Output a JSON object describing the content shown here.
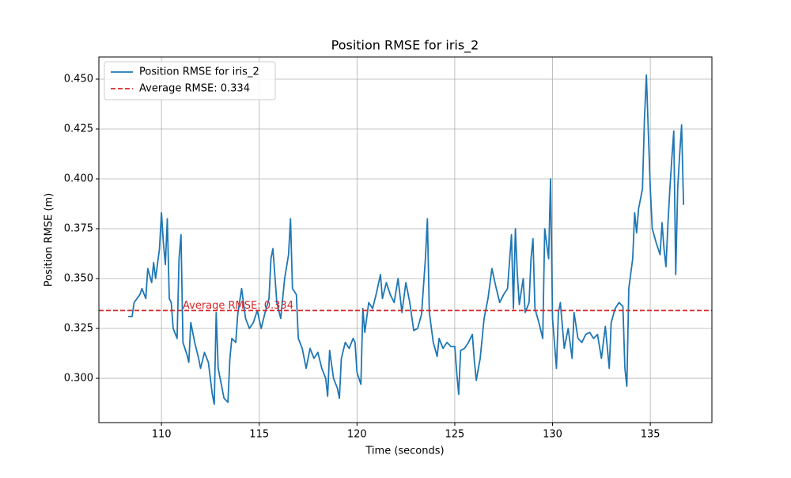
{
  "chart_data": {
    "type": "line",
    "title": "Position RMSE for iris_2",
    "xlabel": "Time (seconds)",
    "ylabel": "Position RMSE (m)",
    "x": [
      108.3,
      108.5,
      108.6,
      108.9,
      109.0,
      109.2,
      109.3,
      109.5,
      109.6,
      109.7,
      109.9,
      110.0,
      110.1,
      110.2,
      110.3,
      110.4,
      110.5,
      110.6,
      110.8,
      110.9,
      111.0,
      111.1,
      111.3,
      111.4,
      111.5,
      111.7,
      111.9,
      112.0,
      112.2,
      112.4,
      112.5,
      112.6,
      112.7,
      112.8,
      112.9,
      113.0,
      113.2,
      113.4,
      113.5,
      113.6,
      113.8,
      113.9,
      114.1,
      114.3,
      114.5,
      114.7,
      114.9,
      115.1,
      115.3,
      115.5,
      115.6,
      115.7,
      115.9,
      116.1,
      116.3,
      116.5,
      116.6,
      116.7,
      116.9,
      117.0,
      117.2,
      117.4,
      117.6,
      117.8,
      118.0,
      118.2,
      118.4,
      118.5,
      118.6,
      118.8,
      119.0,
      119.1,
      119.2,
      119.4,
      119.6,
      119.8,
      119.9,
      120.0,
      120.2,
      120.3,
      120.4,
      120.6,
      120.8,
      121.0,
      121.2,
      121.3,
      121.5,
      121.7,
      121.9,
      122.1,
      122.3,
      122.5,
      122.7,
      122.9,
      123.1,
      123.3,
      123.5,
      123.6,
      123.7,
      123.9,
      124.1,
      124.2,
      124.4,
      124.6,
      124.8,
      125.0,
      125.1,
      125.2,
      125.3,
      125.5,
      125.7,
      125.9,
      126.0,
      126.1,
      126.3,
      126.5,
      126.7,
      126.9,
      127.1,
      127.3,
      127.5,
      127.7,
      127.9,
      128.0,
      128.1,
      128.2,
      128.3,
      128.5,
      128.6,
      128.8,
      128.9,
      129.0,
      129.1,
      129.3,
      129.5,
      129.6,
      129.8,
      129.9,
      130.0,
      130.2,
      130.3,
      130.4,
      130.6,
      130.8,
      131.0,
      131.1,
      131.3,
      131.5,
      131.7,
      131.9,
      132.1,
      132.3,
      132.5,
      132.7,
      132.9,
      133.0,
      133.2,
      133.4,
      133.6,
      133.7,
      133.8,
      133.9,
      134.1,
      134.2,
      134.3,
      134.4,
      134.6,
      134.7,
      134.8,
      134.9,
      135.0,
      135.1,
      135.3,
      135.5,
      135.6,
      135.7,
      135.8,
      135.9,
      136.0,
      136.1,
      136.2,
      136.3,
      136.4,
      136.5,
      136.6,
      136.7
    ],
    "series": [
      {
        "name": "Position RMSE for iris_2",
        "color": "#1f77b4",
        "values": [
          0.331,
          0.331,
          0.338,
          0.342,
          0.345,
          0.34,
          0.355,
          0.348,
          0.358,
          0.35,
          0.365,
          0.383,
          0.368,
          0.357,
          0.38,
          0.34,
          0.338,
          0.325,
          0.32,
          0.36,
          0.372,
          0.318,
          0.312,
          0.308,
          0.328,
          0.318,
          0.31,
          0.305,
          0.313,
          0.308,
          0.3,
          0.292,
          0.287,
          0.333,
          0.305,
          0.3,
          0.29,
          0.288,
          0.31,
          0.32,
          0.318,
          0.332,
          0.345,
          0.33,
          0.325,
          0.328,
          0.334,
          0.325,
          0.333,
          0.34,
          0.36,
          0.365,
          0.338,
          0.33,
          0.35,
          0.362,
          0.38,
          0.345,
          0.342,
          0.32,
          0.315,
          0.305,
          0.315,
          0.31,
          0.313,
          0.305,
          0.3,
          0.291,
          0.314,
          0.3,
          0.295,
          0.29,
          0.31,
          0.318,
          0.315,
          0.32,
          0.318,
          0.303,
          0.297,
          0.335,
          0.323,
          0.338,
          0.335,
          0.343,
          0.352,
          0.34,
          0.348,
          0.342,
          0.338,
          0.35,
          0.333,
          0.348,
          0.338,
          0.324,
          0.325,
          0.332,
          0.36,
          0.38,
          0.333,
          0.318,
          0.311,
          0.32,
          0.315,
          0.318,
          0.316,
          0.316,
          0.303,
          0.292,
          0.314,
          0.315,
          0.318,
          0.322,
          0.309,
          0.299,
          0.31,
          0.33,
          0.34,
          0.355,
          0.346,
          0.338,
          0.342,
          0.345,
          0.372,
          0.335,
          0.375,
          0.352,
          0.337,
          0.35,
          0.333,
          0.338,
          0.36,
          0.37,
          0.335,
          0.328,
          0.32,
          0.375,
          0.36,
          0.4,
          0.33,
          0.305,
          0.333,
          0.338,
          0.315,
          0.325,
          0.31,
          0.333,
          0.32,
          0.318,
          0.322,
          0.323,
          0.32,
          0.322,
          0.31,
          0.326,
          0.305,
          0.328,
          0.335,
          0.338,
          0.336,
          0.305,
          0.296,
          0.345,
          0.36,
          0.383,
          0.373,
          0.385,
          0.395,
          0.43,
          0.452,
          0.423,
          0.395,
          0.375,
          0.368,
          0.362,
          0.378,
          0.365,
          0.356,
          0.377,
          0.395,
          0.41,
          0.424,
          0.352,
          0.395,
          0.412,
          0.427,
          0.387
        ]
      }
    ],
    "hline": {
      "value": 0.334,
      "color": "#d62728",
      "label": "Average RMSE: 0.334"
    },
    "annotation": "Average RMSE: 0.334",
    "xlim": [
      106.8,
      138.15
    ],
    "ylim": [
      0.2778,
      0.4611
    ],
    "xticks": [
      110,
      115,
      120,
      125,
      130,
      135
    ],
    "yticks": [
      {
        "value": 0.3,
        "label": "0.300"
      },
      {
        "value": 0.325,
        "label": "0.325"
      },
      {
        "value": 0.35,
        "label": "0.350"
      },
      {
        "value": 0.375,
        "label": "0.375"
      },
      {
        "value": 0.4,
        "label": "0.400"
      },
      {
        "value": 0.425,
        "label": "0.425"
      },
      {
        "value": 0.45,
        "label": "0.450"
      }
    ],
    "grid": true,
    "legend": "upper left"
  }
}
